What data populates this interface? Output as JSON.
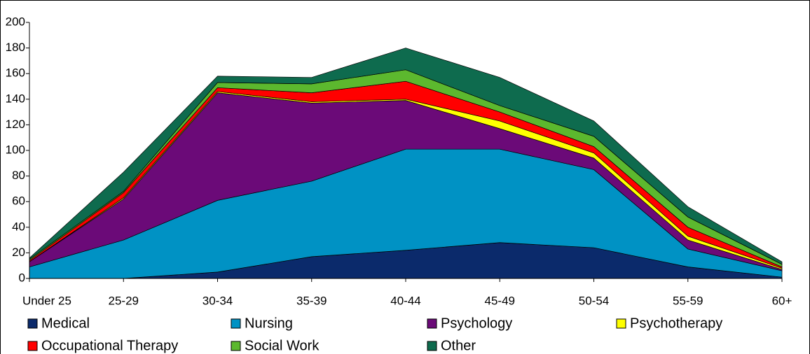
{
  "chart_data": {
    "type": "stacked_area",
    "categories": [
      "Under 25",
      "25-29",
      "30-34",
      "35-39",
      "40-44",
      "45-49",
      "50-54",
      "55-59",
      "60+"
    ],
    "series": [
      {
        "name": "Medical",
        "color": "#0b2a6b",
        "values": [
          0,
          0,
          5,
          17,
          22,
          28,
          24,
          9,
          1
        ]
      },
      {
        "name": "Nursing",
        "color": "#0092c4",
        "values": [
          9,
          30,
          56,
          59,
          79,
          73,
          61,
          14,
          5
        ]
      },
      {
        "name": "Psychology",
        "color": "#6b0a78",
        "values": [
          4,
          32,
          84,
          61,
          38,
          16,
          9,
          7,
          1
        ]
      },
      {
        "name": "Psychotherapy",
        "color": "#ffff00",
        "values": [
          0,
          1,
          1,
          1,
          1,
          6,
          4,
          3,
          1
        ]
      },
      {
        "name": "Occupational Therapy",
        "color": "#ff0000",
        "values": [
          1,
          4,
          3,
          7,
          14,
          7,
          5,
          7,
          1
        ]
      },
      {
        "name": "Social Work",
        "color": "#5cb82e",
        "values": [
          1,
          1,
          4,
          7,
          9,
          5,
          8,
          8,
          2
        ]
      },
      {
        "name": "Other",
        "color": "#0e6b4e",
        "values": [
          1,
          15,
          5,
          5,
          17,
          22,
          12,
          8,
          2
        ]
      }
    ],
    "ylim": [
      0,
      200
    ],
    "yticks": [
      0,
      20,
      40,
      60,
      80,
      100,
      120,
      140,
      160,
      180,
      200
    ],
    "grid": false
  }
}
